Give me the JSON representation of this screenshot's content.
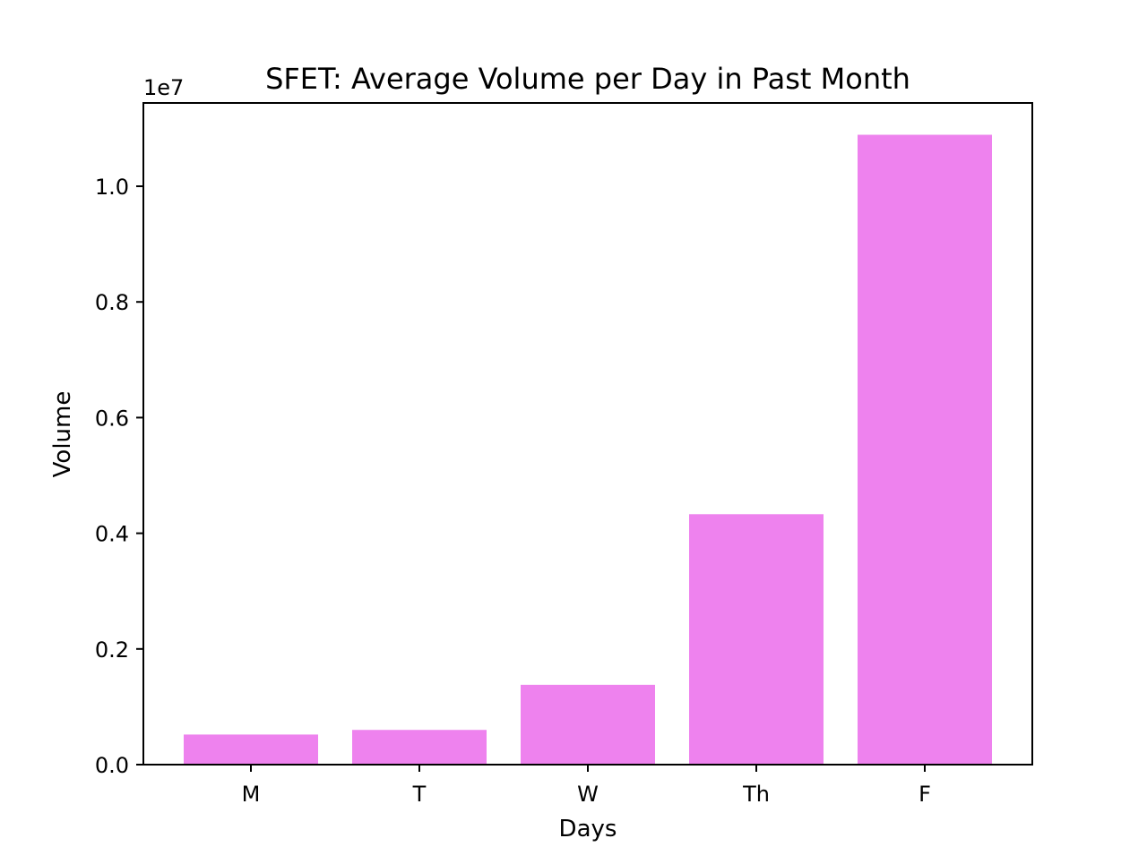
{
  "chart_data": {
    "type": "bar",
    "title": "SFET: Average Volume per Day in Past Month",
    "xlabel": "Days",
    "ylabel": "Volume",
    "y_offset_label": "1e7",
    "categories": [
      "M",
      "T",
      "W",
      "Th",
      "F"
    ],
    "values": [
      520000,
      600000,
      1380000,
      4330000,
      10890000
    ],
    "ylim": [
      0,
      11440000
    ],
    "yticks": [
      0,
      2000000,
      4000000,
      6000000,
      8000000,
      10000000
    ],
    "ytick_labels": [
      "0.0",
      "0.2",
      "0.4",
      "0.6",
      "0.8",
      "1.0"
    ],
    "bar_color": "#ee82ee",
    "grid": false,
    "legend": "none"
  }
}
